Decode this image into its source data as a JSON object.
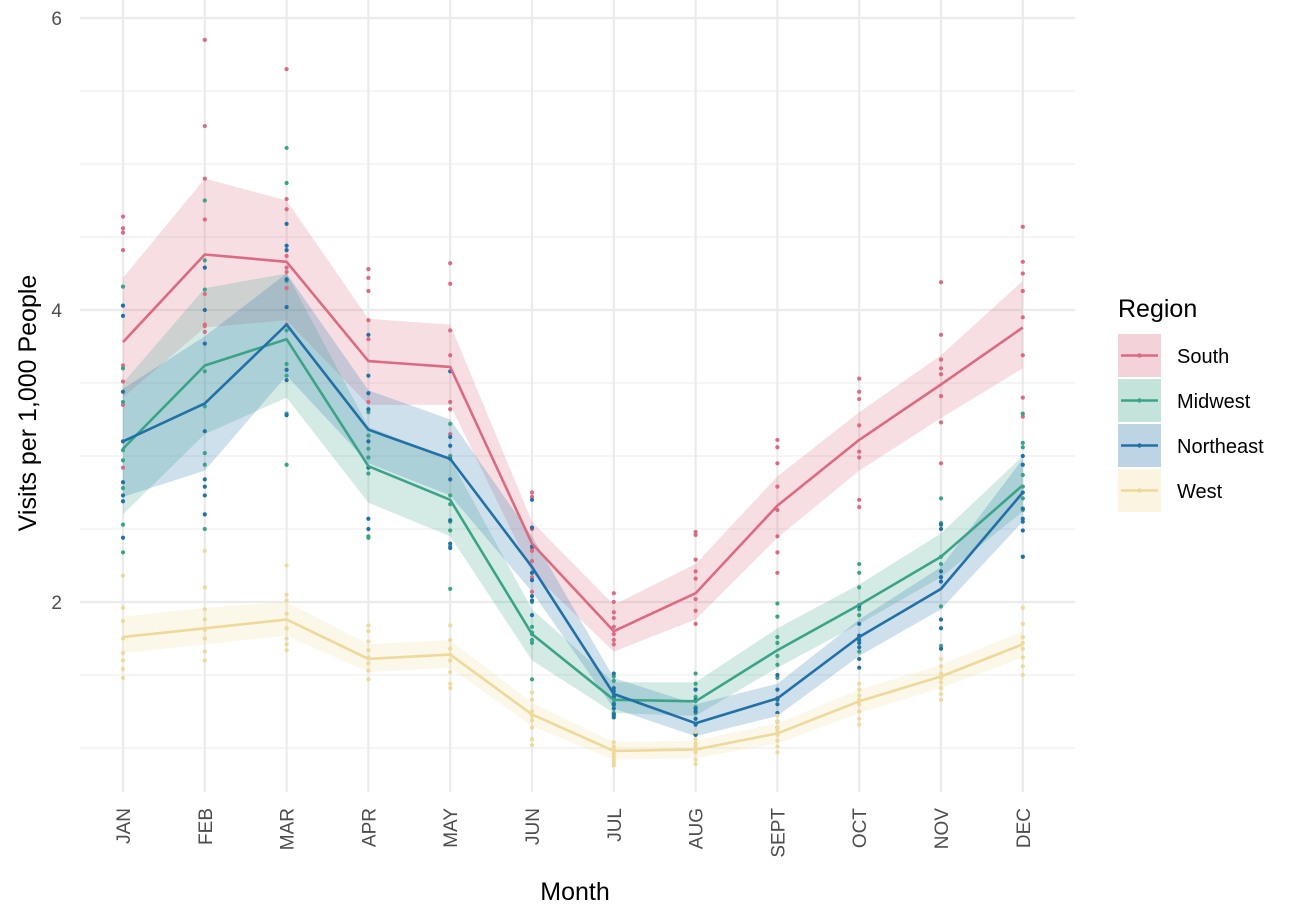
{
  "chart_data": {
    "type": "line",
    "xlabel": "Month",
    "ylabel": "Visits per 1,000 People",
    "categories": [
      "JAN",
      "FEB",
      "MAR",
      "APR",
      "MAY",
      "JUN",
      "JUL",
      "AUG",
      "SEPT",
      "OCT",
      "NOV",
      "DEC"
    ],
    "ylim": [
      0.7,
      6.1
    ],
    "yticks": [
      2,
      4,
      6
    ],
    "grid": true,
    "legend": {
      "title": "Region",
      "position": "right"
    },
    "series": [
      {
        "name": "South",
        "color": "#dc6a81",
        "values": [
          3.78,
          4.38,
          4.33,
          3.65,
          3.61,
          2.4,
          1.8,
          2.06,
          2.66,
          3.11,
          3.49,
          3.88
        ],
        "lower": [
          3.4,
          3.88,
          3.93,
          3.35,
          3.35,
          2.2,
          1.66,
          1.88,
          2.44,
          2.9,
          3.26,
          3.6
        ],
        "upper": [
          4.22,
          4.9,
          4.75,
          3.94,
          3.9,
          2.55,
          1.98,
          2.26,
          2.86,
          3.3,
          3.69,
          4.2
        ],
        "points": [
          [
            4.64,
            4.56,
            4.53,
            4.41,
            3.62,
            3.51,
            3.35,
            2.92
          ],
          [
            5.85,
            5.26,
            4.9,
            4.62,
            4.11,
            3.9,
            3.89,
            3.85
          ],
          [
            5.65,
            4.76,
            4.69,
            4.37,
            4.29,
            4.26,
            4.15,
            3.9
          ],
          [
            4.28,
            4.22,
            4.13,
            3.93,
            3.8,
            3.37,
            3.14,
            3.1
          ],
          [
            4.32,
            4.18,
            3.86,
            3.69,
            3.37,
            3.32,
            3.15,
            3.0
          ],
          [
            2.75,
            2.72,
            2.5,
            2.37,
            2.28,
            2.17,
            2.07,
            2.35
          ],
          [
            2.06,
            2.0,
            1.93,
            1.83,
            1.74,
            1.71,
            1.89,
            1.78
          ],
          [
            2.48,
            2.46,
            2.29,
            2.21,
            2.16,
            2.02,
            1.94,
            1.85
          ],
          [
            3.11,
            3.06,
            2.95,
            2.63,
            2.45,
            2.34,
            2.2,
            2.79
          ],
          [
            3.53,
            3.44,
            3.39,
            3.21,
            3.03,
            2.99,
            2.7,
            2.65
          ],
          [
            4.19,
            3.83,
            3.66,
            3.6,
            3.56,
            3.41,
            3.23,
            2.95
          ],
          [
            4.57,
            4.33,
            4.25,
            4.13,
            3.95,
            3.69,
            3.4,
            3.27
          ]
        ]
      },
      {
        "name": "Midwest",
        "color": "#3ba488",
        "values": [
          3.05,
          3.62,
          3.8,
          2.93,
          2.7,
          1.78,
          1.33,
          1.32,
          1.67,
          1.98,
          2.31,
          2.8
        ],
        "lower": [
          2.6,
          3.15,
          3.4,
          2.68,
          2.45,
          1.6,
          1.24,
          1.22,
          1.55,
          1.85,
          2.17,
          2.62
        ],
        "upper": [
          3.5,
          4.15,
          4.25,
          3.2,
          2.98,
          1.95,
          1.45,
          1.45,
          1.82,
          2.12,
          2.47,
          3.0
        ],
        "points": [
          [
            4.16,
            3.6,
            3.37,
            2.97,
            2.53,
            2.34,
            2.78,
            3.04
          ],
          [
            4.75,
            4.34,
            4.14,
            3.58,
            3.34,
            3.02,
            2.94,
            2.5
          ],
          [
            5.11,
            4.87,
            4.2,
            3.86,
            3.55,
            3.29,
            2.94,
            3.63
          ],
          [
            3.3,
            3.14,
            2.99,
            2.88,
            2.45,
            2.44,
            2.99,
            3.05
          ],
          [
            3.22,
            3.0,
            2.73,
            2.55,
            2.49,
            2.38,
            2.09,
            2.67
          ],
          [
            2.2,
            2.0,
            1.78,
            1.74,
            1.47,
            1.79,
            1.72,
            1.83
          ],
          [
            1.49,
            1.46,
            1.37,
            1.31,
            1.24,
            1.22,
            1.29,
            1.34
          ],
          [
            1.51,
            1.44,
            1.4,
            1.32,
            1.24,
            1.2,
            1.28,
            1.35
          ],
          [
            1.99,
            1.9,
            1.76,
            1.72,
            1.63,
            1.48,
            1.34,
            1.57
          ],
          [
            2.26,
            2.2,
            2.1,
            1.98,
            1.95,
            1.76,
            1.66,
            1.91
          ],
          [
            2.71,
            2.54,
            2.31,
            2.26,
            2.17,
            2.14,
            1.97,
            1.7
          ],
          [
            3.29,
            3.09,
            3.06,
            2.87,
            2.79,
            2.71,
            2.63,
            2.31
          ]
        ]
      },
      {
        "name": "Northeast",
        "color": "#2171a7",
        "values": [
          3.1,
          3.36,
          3.9,
          3.18,
          2.98,
          2.24,
          1.37,
          1.17,
          1.34,
          1.76,
          2.09,
          2.75
        ],
        "lower": [
          2.72,
          2.9,
          3.55,
          2.95,
          2.73,
          2.07,
          1.27,
          1.08,
          1.22,
          1.63,
          1.95,
          2.55
        ],
        "upper": [
          3.46,
          3.82,
          4.25,
          3.45,
          3.25,
          2.45,
          1.48,
          1.3,
          1.44,
          1.88,
          2.24,
          2.98
        ],
        "points": [
          [
            4.03,
            3.96,
            3.44,
            3.1,
            2.82,
            2.73,
            2.69,
            2.44
          ],
          [
            4.29,
            4.0,
            3.77,
            3.17,
            2.84,
            2.79,
            2.73,
            2.6
          ],
          [
            4.59,
            4.44,
            4.41,
            4.21,
            4.02,
            3.59,
            3.52,
            3.28
          ],
          [
            3.83,
            3.55,
            3.43,
            3.32,
            2.92,
            2.57,
            2.5,
            3.1
          ],
          [
            3.58,
            3.13,
            3.07,
            2.98,
            2.84,
            2.56,
            2.4,
            2.37
          ],
          [
            2.7,
            2.51,
            2.38,
            2.2,
            2.15,
            2.04,
            2.01,
            1.91
          ],
          [
            1.51,
            1.41,
            1.35,
            1.3,
            1.27,
            1.21,
            1.23,
            1.39
          ],
          [
            1.4,
            1.33,
            1.25,
            1.16,
            1.1,
            1.09,
            1.2,
            1.27
          ],
          [
            1.5,
            1.4,
            1.34,
            1.3,
            1.24,
            1.14,
            1.33,
            1.18
          ],
          [
            1.97,
            1.85,
            1.77,
            1.72,
            1.69,
            1.61,
            1.55,
            1.74
          ],
          [
            2.53,
            2.5,
            2.21,
            2.17,
            2.14,
            1.88,
            1.82,
            1.68
          ],
          [
            3.0,
            2.94,
            2.75,
            2.64,
            2.57,
            2.55,
            2.49,
            2.31
          ]
        ]
      },
      {
        "name": "West",
        "color": "#efd99a",
        "values": [
          1.76,
          1.82,
          1.88,
          1.61,
          1.64,
          1.23,
          0.98,
          0.99,
          1.1,
          1.32,
          1.49,
          1.71
        ],
        "lower": [
          1.65,
          1.71,
          1.77,
          1.52,
          1.55,
          1.15,
          0.92,
          0.93,
          1.03,
          1.24,
          1.41,
          1.62
        ],
        "upper": [
          1.9,
          1.96,
          2.0,
          1.71,
          1.74,
          1.31,
          1.04,
          1.05,
          1.17,
          1.4,
          1.57,
          1.8
        ],
        "points": [
          [
            2.18,
            1.96,
            1.87,
            1.75,
            1.65,
            1.6,
            1.54,
            1.48
          ],
          [
            2.35,
            2.1,
            1.88,
            1.81,
            1.75,
            1.66,
            1.6,
            1.95
          ],
          [
            2.25,
            2.05,
            2.01,
            1.92,
            1.82,
            1.75,
            1.71,
            1.67
          ],
          [
            1.84,
            1.8,
            1.73,
            1.62,
            1.58,
            1.53,
            1.47,
            1.67
          ],
          [
            1.84,
            1.74,
            1.68,
            1.64,
            1.6,
            1.52,
            1.44,
            1.41
          ],
          [
            1.38,
            1.33,
            1.25,
            1.22,
            1.19,
            1.14,
            1.06,
            1.02
          ],
          [
            1.04,
            1.01,
            0.99,
            0.96,
            0.94,
            0.92,
            0.9,
            0.88
          ],
          [
            1.11,
            1.06,
            1.03,
            1.01,
            0.99,
            0.97,
            0.92,
            0.89
          ],
          [
            1.22,
            1.18,
            1.14,
            1.12,
            1.09,
            1.05,
            1.01,
            0.97
          ],
          [
            1.44,
            1.4,
            1.36,
            1.33,
            1.3,
            1.25,
            1.2,
            1.16
          ],
          [
            1.61,
            1.56,
            1.51,
            1.48,
            1.45,
            1.41,
            1.37,
            1.33
          ],
          [
            1.96,
            1.85,
            1.76,
            1.72,
            1.68,
            1.62,
            1.56,
            1.5
          ]
        ]
      }
    ]
  }
}
